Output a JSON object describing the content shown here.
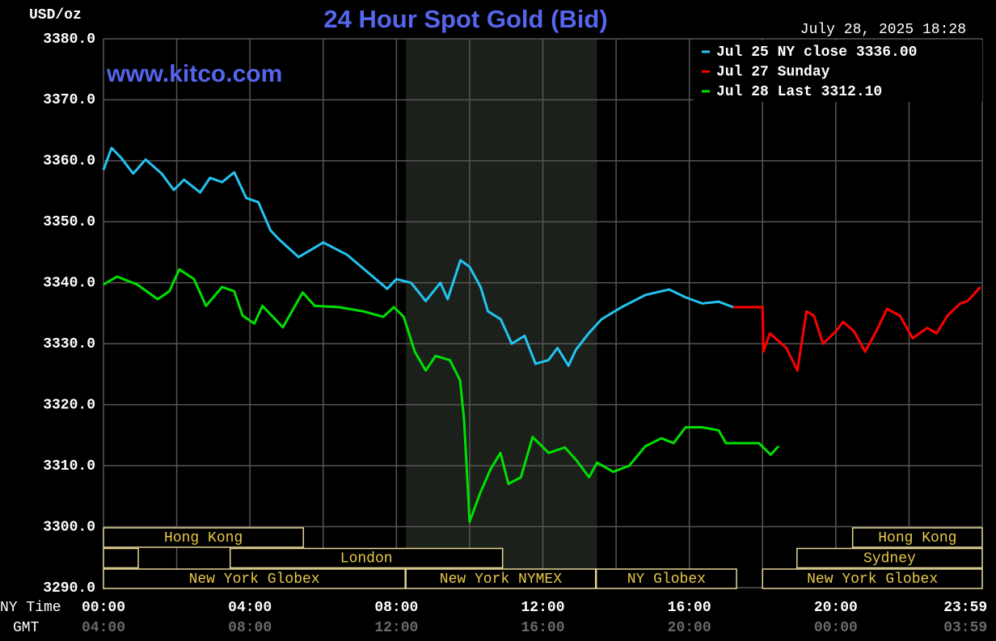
{
  "chart_data": {
    "type": "line",
    "title": "24 Hour Spot Gold (Bid)",
    "y_label": "USD/oz",
    "timestamp": "July 28, 2025 18:28",
    "watermark": "www.kitco.com",
    "x_label": "NY Time",
    "x2_label": "GMT",
    "xlim": [
      0,
      24
    ],
    "ylim": [
      3290,
      3380
    ],
    "xticks": [
      {
        "value": 0,
        "label": "00:00"
      },
      {
        "value": 4,
        "label": "04:00"
      },
      {
        "value": 8,
        "label": "08:00"
      },
      {
        "value": 12,
        "label": "12:00"
      },
      {
        "value": 16,
        "label": "16:00"
      },
      {
        "value": 20,
        "label": "20:00"
      },
      {
        "value": 23.983,
        "label": "23:59"
      }
    ],
    "x2_tick_labels": [
      "04:00",
      "08:00",
      "12:00",
      "16:00",
      "20:00",
      "00:00",
      "03:59"
    ],
    "xgrid": [
      0,
      2,
      4,
      6,
      8,
      10,
      12,
      14,
      16,
      18,
      20,
      22,
      24
    ],
    "yticks": [
      {
        "value": 3290,
        "label": "3290.0"
      },
      {
        "value": 3300,
        "label": "3300.0"
      },
      {
        "value": 3310,
        "label": "3310.0"
      },
      {
        "value": 3320,
        "label": "3320.0"
      },
      {
        "value": 3330,
        "label": "3330.0"
      },
      {
        "value": 3340,
        "label": "3340.0"
      },
      {
        "value": 3350,
        "label": "3350.0"
      },
      {
        "value": 3360,
        "label": "3360.0"
      },
      {
        "value": 3370,
        "label": "3370.0"
      },
      {
        "value": 3380,
        "label": "3380.0"
      }
    ],
    "grid": true,
    "legend": "top-right",
    "shaded_range": [
      8.26,
      13.48
    ],
    "series": [
      {
        "name": "Jul 25 NY close 3336.00",
        "color": "#22c4f0",
        "x": [
          0,
          0.22,
          0.48,
          0.81,
          1.15,
          1.59,
          1.92,
          2.2,
          2.64,
          2.91,
          3.24,
          3.57,
          3.9,
          4.23,
          4.56,
          4.78,
          5.33,
          6.0,
          6.65,
          7.3,
          7.75,
          8.0,
          8.4,
          8.8,
          9.2,
          9.4,
          9.75,
          10.0,
          10.3,
          10.5,
          10.85,
          11.15,
          11.5,
          11.8,
          12.15,
          12.4,
          12.7,
          12.9,
          13.25,
          13.6,
          14.15,
          14.8,
          15.45,
          15.9,
          16.35,
          16.8,
          17.2
        ],
        "values": [
          3358.5,
          3362.1,
          3360.5,
          3357.9,
          3360.2,
          3357.9,
          3355.2,
          3356.9,
          3354.8,
          3357.2,
          3356.5,
          3358.1,
          3353.9,
          3353.2,
          3348.6,
          3347.2,
          3344.2,
          3346.6,
          3344.6,
          3341.3,
          3339,
          3340.6,
          3340,
          3337,
          3340,
          3337.3,
          3343.7,
          3342.6,
          3339.3,
          3335.3,
          3334,
          3330,
          3331.3,
          3326.7,
          3327.3,
          3329.3,
          3326.4,
          3329,
          3331.7,
          3334,
          3336,
          3338,
          3338.9,
          3337.6,
          3336.6,
          3336.9,
          3336
        ]
      },
      {
        "name": "Jul 27 Sunday",
        "color": "#ff0000",
        "x": [
          17.2,
          18.0,
          18.02,
          18.2,
          18.65,
          18.95,
          19.2,
          19.4,
          19.65,
          20.0,
          20.2,
          20.5,
          20.8,
          21.1,
          21.4,
          21.75,
          22.1,
          22.5,
          22.75,
          23.05,
          23.4,
          23.6,
          23.95
        ],
        "values": [
          3336,
          3336,
          3328.7,
          3331.7,
          3329.3,
          3325.6,
          3335.3,
          3334.6,
          3330,
          3332,
          3333.6,
          3332,
          3328.7,
          3332,
          3335.7,
          3334.6,
          3330.9,
          3332.6,
          3331.7,
          3334.6,
          3336.6,
          3337,
          3339.3
        ]
      },
      {
        "name": "Jul 28 Last 3312.10",
        "color": "#00e000",
        "x": [
          0,
          0.37,
          0.92,
          1.48,
          1.8,
          2.07,
          2.47,
          2.8,
          3.24,
          3.57,
          3.8,
          4.12,
          4.34,
          4.9,
          5.44,
          5.77,
          6.43,
          7.1,
          7.64,
          7.93,
          8.2,
          8.5,
          8.8,
          9.07,
          9.46,
          9.74,
          9.85,
          10.0,
          10.28,
          10.57,
          10.84,
          11.06,
          11.4,
          11.72,
          12.16,
          12.6,
          12.93,
          13.26,
          13.48,
          13.92,
          14.36,
          14.8,
          15.24,
          15.57,
          15.9,
          16.35,
          16.8,
          17.0,
          17.9,
          18.22,
          18.44
        ],
        "values": [
          3339.7,
          3341,
          3339.7,
          3337.3,
          3338.6,
          3342.2,
          3340.6,
          3336.2,
          3339.3,
          3338.6,
          3334.6,
          3333.3,
          3336.2,
          3332.7,
          3338.4,
          3336.2,
          3336,
          3335.3,
          3334.4,
          3336,
          3334.4,
          3328.7,
          3325.6,
          3328,
          3327.3,
          3324,
          3317.4,
          3300.8,
          3305.4,
          3309.4,
          3312.1,
          3307,
          3308.1,
          3314.7,
          3312.1,
          3313,
          3310.8,
          3308.1,
          3310.5,
          3309,
          3310,
          3313.2,
          3314.5,
          3313.7,
          3316.3,
          3316.3,
          3315.8,
          3313.7,
          3313.7,
          3311.8,
          3313.2
        ]
      }
    ],
    "sessions": [
      {
        "label": "Hong Kong",
        "row": 0,
        "start": 0,
        "end": 5.46
      },
      {
        "label": "Hong Kong",
        "row": 0,
        "start": 20.46,
        "end": 24
      },
      {
        "label": null,
        "row": 1,
        "start": 0,
        "end": 0.95
      },
      {
        "label": "London",
        "row": 1,
        "start": 3.46,
        "end": 10.9
      },
      {
        "label": "Sydney",
        "row": 1,
        "start": 18.94,
        "end": 24
      },
      {
        "label": "New York Globex",
        "row": 2,
        "start": 0,
        "end": 8.24
      },
      {
        "label": "New York NYMEX",
        "row": 2,
        "start": 8.26,
        "end": 13.44
      },
      {
        "label": "NY Globex",
        "row": 2,
        "start": 13.46,
        "end": 17.29
      },
      {
        "label": "New York Globex",
        "row": 2,
        "start": 18,
        "end": 24
      }
    ]
  }
}
